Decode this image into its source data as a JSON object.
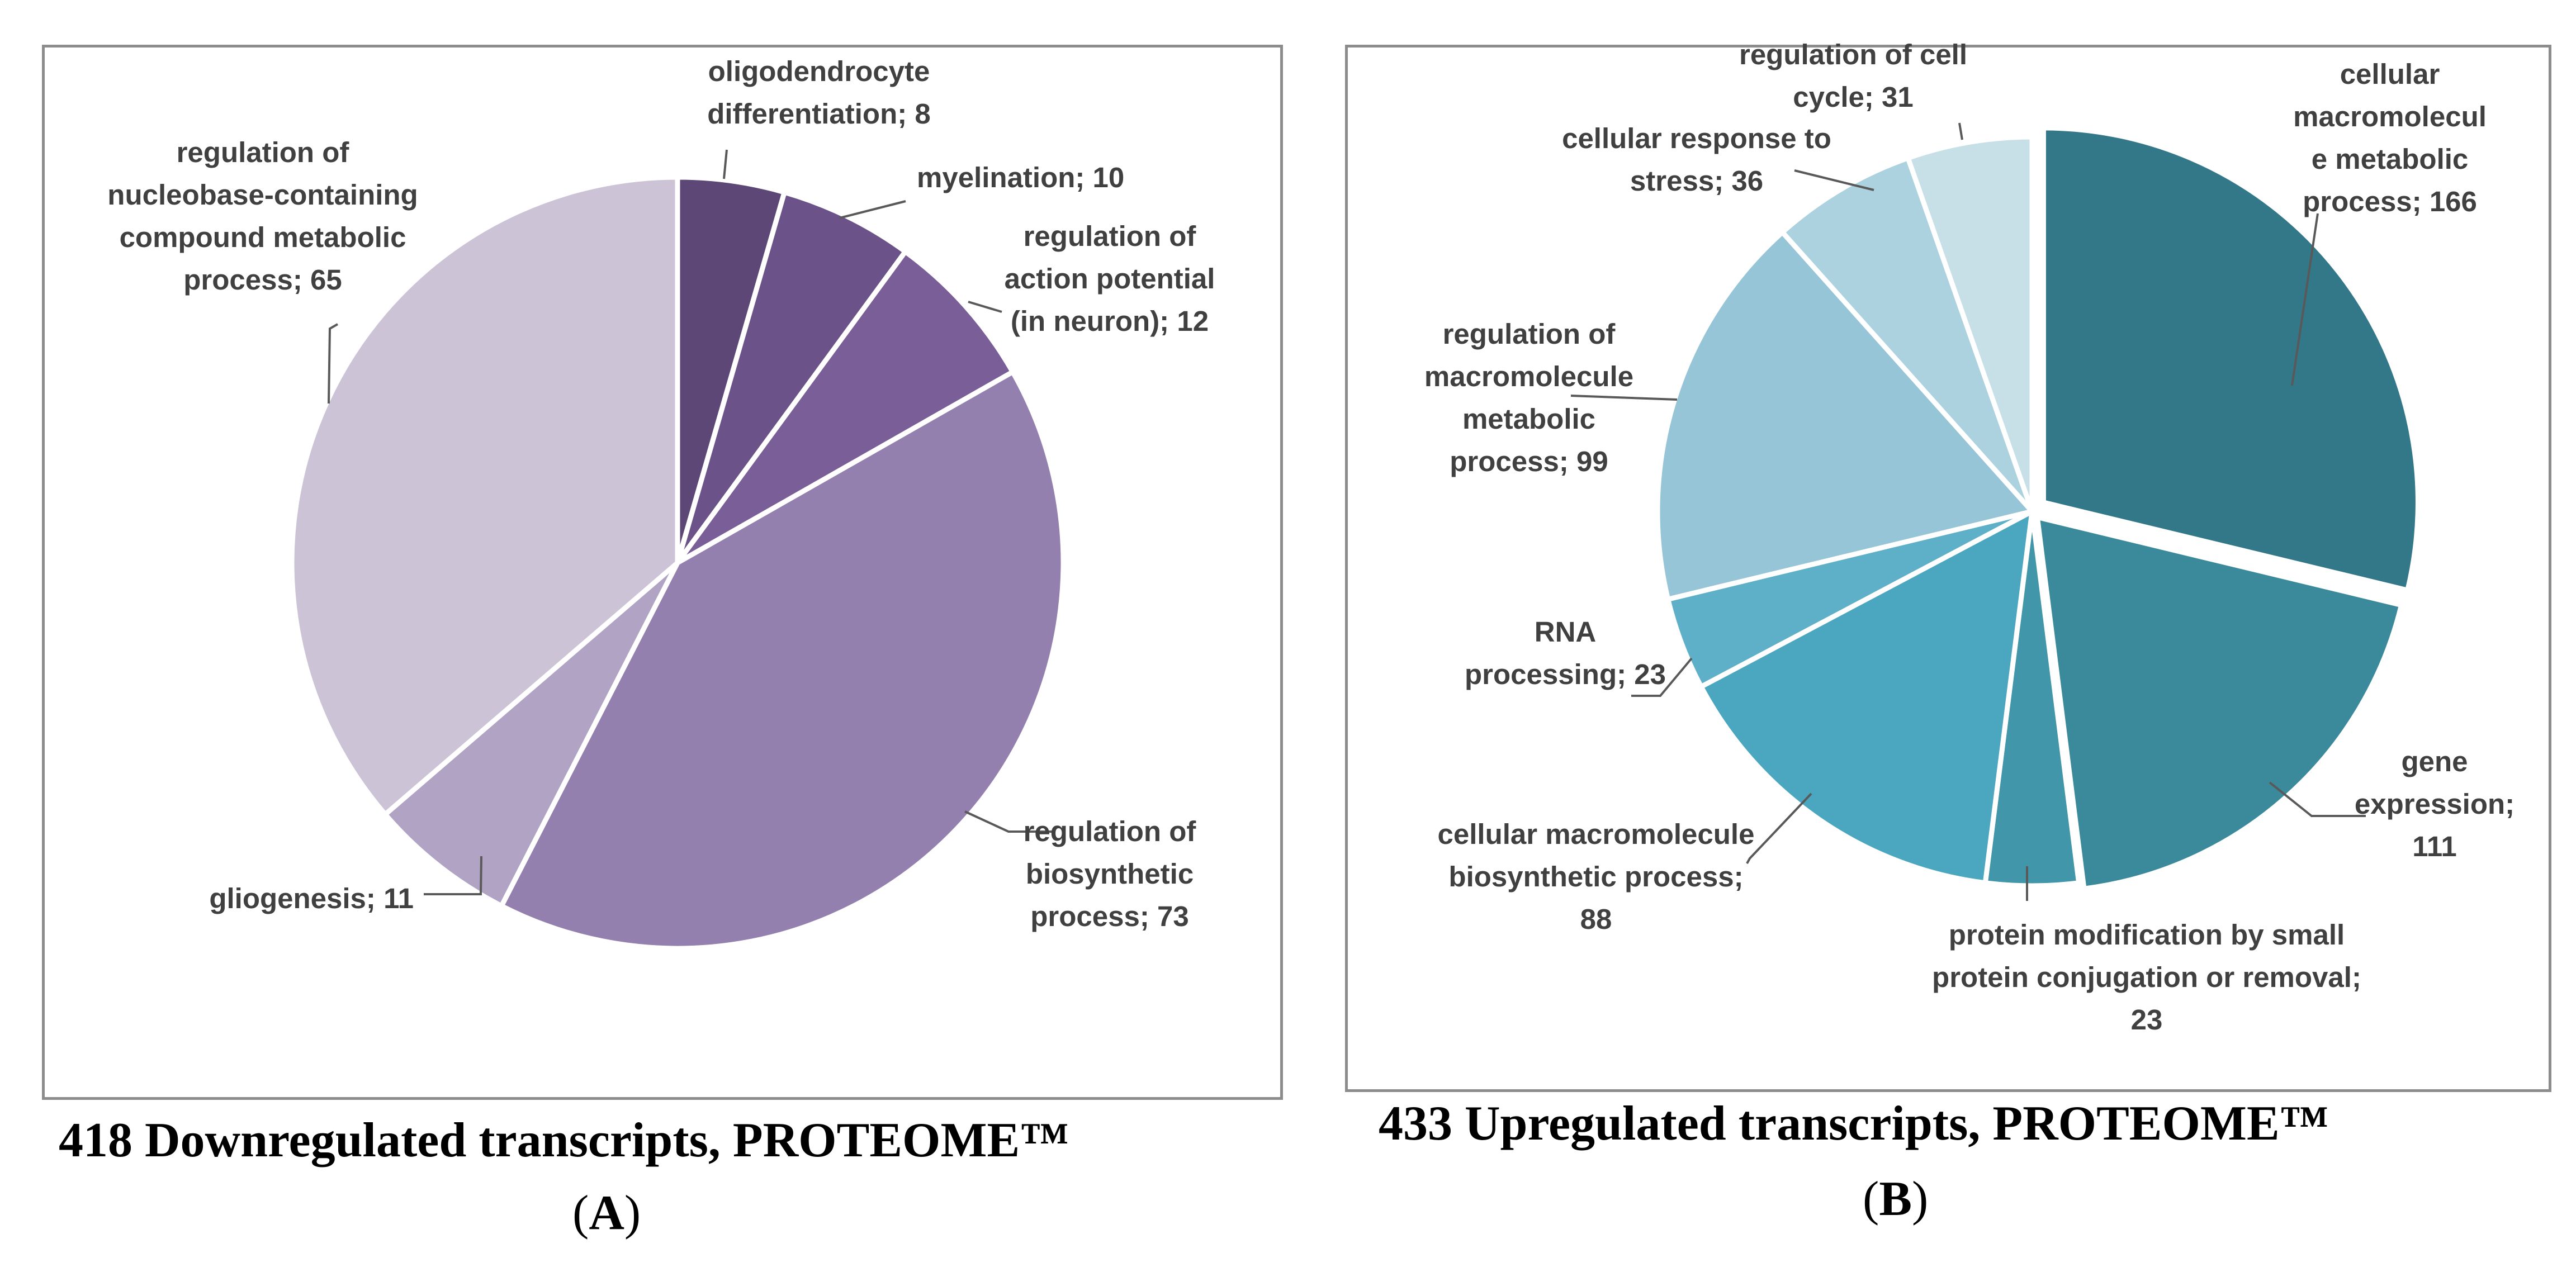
{
  "chart_data": [
    {
      "type": "pie",
      "panel": "A",
      "caption": "418 Downregulated transcripts, PROTEOME™",
      "total": 418,
      "slices": [
        {
          "name": "oligodendrocyte differentiation",
          "value": 8,
          "lines": [
            "oligodendrocyte",
            "differentiation; 8"
          ],
          "color": "#5c4776"
        },
        {
          "name": "myelination",
          "value": 10,
          "lines": [
            "myelination; 10"
          ],
          "color": "#6b5288"
        },
        {
          "name": "regulation of action potential (in neuron)",
          "value": 12,
          "lines": [
            "regulation of",
            "action potential",
            "(in neuron); 12"
          ],
          "color": "#7a5e97"
        },
        {
          "name": "regulation of biosynthetic process",
          "value": 73,
          "lines": [
            "regulation of",
            "biosynthetic",
            "process; 73"
          ],
          "color": "#9380ae"
        },
        {
          "name": "gliogenesis",
          "value": 11,
          "lines": [
            "gliogenesis; 11"
          ],
          "color": "#b0a3c3"
        },
        {
          "name": "regulation of nucleobase-containing compound metabolic process",
          "value": 65,
          "lines": [
            "regulation of",
            "nucleobase-containing",
            "compound metabolic",
            "process; 65"
          ],
          "color": "#ccc4d6"
        }
      ]
    },
    {
      "type": "pie",
      "panel": "B",
      "caption": "433 Upregulated transcripts, PROTEOME™",
      "total": 433,
      "slices": [
        {
          "name": "cellular macromolecule metabolic process",
          "value": 166,
          "lines": [
            "cellular",
            "macromolecul",
            "e metabolic",
            "process; 166"
          ],
          "color": "#337888"
        },
        {
          "name": "gene expression",
          "value": 111,
          "lines": [
            "gene",
            "expression;",
            "111"
          ],
          "color": "#3b8a9c"
        },
        {
          "name": "protein modification by small protein conjugation or removal",
          "value": 23,
          "lines": [
            "protein modification by small",
            "protein conjugation or removal;",
            "23"
          ],
          "color": "#4296aa"
        },
        {
          "name": "cellular macromolecule biosynthetic process",
          "value": 88,
          "lines": [
            "cellular macromolecule",
            "biosynthetic process;",
            "88"
          ],
          "color": "#4ba7c0"
        },
        {
          "name": "RNA processing",
          "value": 23,
          "lines": [
            "RNA",
            "processing; 23"
          ],
          "color": "#5eb0c8"
        },
        {
          "name": "regulation of macromolecule metabolic process",
          "value": 99,
          "lines": [
            "regulation of",
            "macromolecule",
            "metabolic",
            "process; 99"
          ],
          "color": "#95c5d6"
        },
        {
          "name": "cellular response to stress",
          "value": 36,
          "lines": [
            "cellular response to",
            "stress; 36"
          ],
          "color": "#acd2df"
        },
        {
          "name": "regulation of cell cycle",
          "value": 31,
          "lines": [
            "regulation of cell",
            "cycle; 31"
          ],
          "color": "#c7dfe7"
        }
      ]
    }
  ],
  "panel_labels": {
    "a": "A",
    "b": "B"
  },
  "colors": {
    "border": "#8c8c8c",
    "label_text": "#404040",
    "leader": "#595959"
  }
}
